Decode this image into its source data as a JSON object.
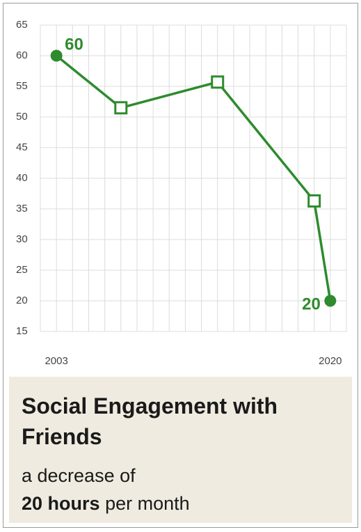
{
  "chart_data": {
    "type": "line",
    "title": "Social Engagement with Friends",
    "subtitle": {
      "lead": "a decrease of",
      "bold": "20 hours",
      "rest": "per month"
    },
    "x": [
      2003,
      2007,
      2013,
      2019,
      2020
    ],
    "series": [
      {
        "name": "Social Engagement with Friends",
        "color": "#2e8b2e",
        "values": [
          60,
          51.5,
          55.7,
          36.3,
          20
        ],
        "markers": [
          "circle",
          "square",
          "square",
          "square",
          "circle"
        ]
      }
    ],
    "xlim": [
      2002,
      2021
    ],
    "xticks": [
      2003,
      2020
    ],
    "xminorticks": [
      2002,
      2003,
      2004,
      2005,
      2006,
      2007,
      2008,
      2009,
      2010,
      2011,
      2012,
      2013,
      2014,
      2015,
      2016,
      2017,
      2018,
      2019,
      2020,
      2021
    ],
    "ylim": [
      15,
      65
    ],
    "yticks": [
      15,
      20,
      25,
      30,
      35,
      40,
      45,
      50,
      55,
      60,
      65
    ],
    "grid": true
  }
}
